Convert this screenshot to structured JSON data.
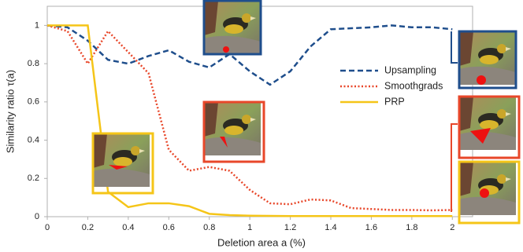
{
  "chart_data": {
    "type": "line",
    "x_label": "Deletion area a (%)",
    "y_label": "Similarity ratio τ(a)",
    "x": [
      0,
      0.1,
      0.2,
      0.3,
      0.4,
      0.5,
      0.6,
      0.7,
      0.8,
      0.9,
      1.0,
      1.1,
      1.2,
      1.3,
      1.4,
      1.5,
      1.6,
      1.7,
      1.8,
      1.9,
      2.0
    ],
    "series": [
      {
        "name": "Upsampling",
        "color": "#1f4e8c",
        "dash": "dashed",
        "values": [
          1,
          0.99,
          0.92,
          0.82,
          0.8,
          0.84,
          0.87,
          0.81,
          0.78,
          0.85,
          0.76,
          0.69,
          0.76,
          0.89,
          0.98,
          0.985,
          0.99,
          1.0,
          0.99,
          0.99,
          0.98
        ]
      },
      {
        "name": "Smoothgrads",
        "color": "#e8472a",
        "dash": "dotted",
        "values": [
          1,
          0.97,
          0.8,
          0.97,
          0.86,
          0.75,
          0.35,
          0.24,
          0.26,
          0.24,
          0.14,
          0.07,
          0.065,
          0.09,
          0.085,
          0.045,
          0.04,
          0.035,
          0.035,
          0.033,
          0.035
        ]
      },
      {
        "name": "PRP",
        "color": "#f5c518",
        "dash": "solid",
        "values": [
          1,
          1,
          1,
          0.13,
          0.05,
          0.07,
          0.07,
          0.055,
          0.015,
          0.008,
          0.005,
          0.004,
          0.003,
          0.003,
          0.003,
          0.003,
          0.003,
          0.003,
          0.003,
          0.003,
          0.003
        ]
      }
    ],
    "xlim": [
      0,
      2.1
    ],
    "ylim": [
      0,
      1.1
    ],
    "xticks": [
      0,
      0.2,
      0.4,
      0.6,
      0.8,
      1,
      1.2,
      1.4,
      1.6,
      1.8,
      2
    ],
    "yticks": [
      0,
      0.2,
      0.4,
      0.6,
      0.8,
      1
    ],
    "grid": false,
    "legend": "right"
  }
}
